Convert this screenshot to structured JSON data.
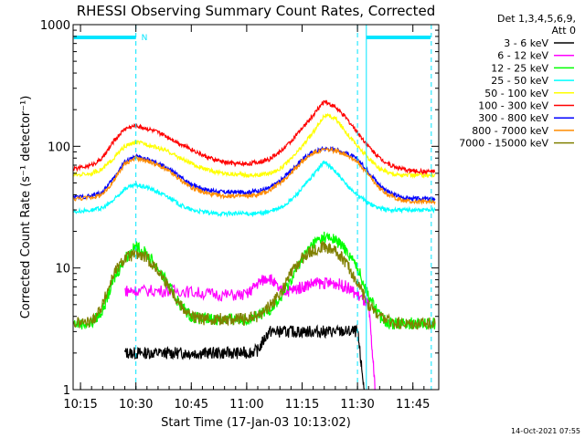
{
  "chart_data": {
    "type": "line",
    "title": "RHESSI Observing Summary Count Rates, Corrected",
    "xlabel": "Start Time (17-Jan-03 10:13:02)",
    "ylabel": "Corrected Count Rate (s⁻¹ detector⁻¹)",
    "y_scale": "log",
    "ylim": [
      1,
      1000
    ],
    "xlim_minutes": [
      10.2167,
      11.8667
    ],
    "x_tick_labels": [
      "10:15",
      "10:30",
      "10:45",
      "11:00",
      "11:15",
      "11:30",
      "11:45"
    ],
    "x_tick_values": [
      10.25,
      10.5,
      10.75,
      11.0,
      11.25,
      11.5,
      11.75
    ],
    "y_tick_labels": [
      "1",
      "10",
      "100",
      "1000"
    ],
    "y_tick_values": [
      1,
      10,
      100,
      1000
    ],
    "legend": {
      "header_line1": "Det 1,3,4,5,6,9,",
      "header_line2": "Att 0",
      "position": "top-right"
    },
    "series": [
      {
        "name": "3 - 6 keV",
        "color": "#000000",
        "x": [
          10.45,
          10.5,
          10.55,
          10.6,
          10.65,
          10.7,
          10.75,
          10.8,
          10.85,
          10.9,
          10.95,
          11.0,
          11.05,
          11.1,
          11.15,
          11.2,
          11.25,
          11.3,
          11.35,
          11.4,
          11.45,
          11.5,
          11.53
        ],
        "y": [
          2.0,
          2.0,
          2.0,
          2.0,
          2.0,
          2.0,
          2.0,
          2.0,
          2.0,
          2.0,
          2.0,
          2.0,
          2.1,
          3.0,
          3.0,
          3.0,
          3.0,
          3.0,
          3.0,
          3.0,
          3.0,
          3.0,
          1.0
        ]
      },
      {
        "name": "6 - 12 keV",
        "color": "#ff00ff",
        "x": [
          10.45,
          10.5,
          10.6,
          10.7,
          10.8,
          10.9,
          11.0,
          11.05,
          11.1,
          11.15,
          11.2,
          11.25,
          11.3,
          11.35,
          11.4,
          11.45,
          11.5,
          11.55,
          11.58
        ],
        "y": [
          6.5,
          6.5,
          6.5,
          6.5,
          6.2,
          6.0,
          6.0,
          7.5,
          8.5,
          6.5,
          6.5,
          7.0,
          7.5,
          7.5,
          7.5,
          7.0,
          6.0,
          5.0,
          1.0
        ]
      },
      {
        "name": "12 - 25 keV",
        "color": "#00ff00",
        "x": [
          10.22,
          10.3,
          10.35,
          10.4,
          10.45,
          10.5,
          10.55,
          10.6,
          10.65,
          10.7,
          10.75,
          10.8,
          10.85,
          10.9,
          10.95,
          11.0,
          11.05,
          11.1,
          11.15,
          11.2,
          11.25,
          11.3,
          11.35,
          11.4,
          11.45,
          11.5,
          11.55,
          11.6,
          11.65,
          11.7,
          11.75,
          11.8,
          11.85
        ],
        "y": [
          3.5,
          3.5,
          4.5,
          8.0,
          12.0,
          15.0,
          13.0,
          10.0,
          7.0,
          5.0,
          4.0,
          3.8,
          3.8,
          3.8,
          3.8,
          3.8,
          4.0,
          4.5,
          5.5,
          8.0,
          12.0,
          16.0,
          18.0,
          17.0,
          14.0,
          10.0,
          6.0,
          4.0,
          3.5,
          3.5,
          3.5,
          3.5,
          3.5
        ]
      },
      {
        "name": "25 - 50 keV",
        "color": "#00ffff",
        "x": [
          10.22,
          10.3,
          10.35,
          10.4,
          10.45,
          10.5,
          10.55,
          10.6,
          10.65,
          10.7,
          10.75,
          10.8,
          10.85,
          10.9,
          10.95,
          11.0,
          11.05,
          11.1,
          11.15,
          11.2,
          11.25,
          11.3,
          11.35,
          11.4,
          11.45,
          11.5,
          11.55,
          11.6,
          11.65,
          11.7,
          11.75,
          11.8,
          11.85
        ],
        "y": [
          29,
          30,
          31,
          36,
          45,
          48,
          46,
          42,
          38,
          33,
          30,
          29,
          28,
          28,
          28,
          28,
          28,
          29,
          31,
          36,
          45,
          58,
          75,
          62,
          48,
          40,
          34,
          31,
          30,
          30,
          30,
          30,
          30
        ]
      },
      {
        "name": "50 - 100 keV",
        "color": "#ffff00",
        "x": [
          10.22,
          10.3,
          10.35,
          10.4,
          10.45,
          10.5,
          10.55,
          10.6,
          10.65,
          10.7,
          10.75,
          10.8,
          10.85,
          10.9,
          10.95,
          11.0,
          11.05,
          11.1,
          11.15,
          11.2,
          11.25,
          11.3,
          11.35,
          11.4,
          11.45,
          11.5,
          11.55,
          11.6,
          11.65,
          11.7,
          11.75,
          11.8,
          11.85
        ],
        "y": [
          58,
          60,
          65,
          80,
          100,
          108,
          104,
          97,
          90,
          80,
          72,
          66,
          62,
          60,
          59,
          58,
          58,
          60,
          65,
          78,
          100,
          130,
          180,
          170,
          130,
          100,
          80,
          65,
          60,
          58,
          58,
          58,
          58
        ]
      },
      {
        "name": "100 - 300 keV",
        "color": "#ff0000",
        "x": [
          10.22,
          10.3,
          10.35,
          10.4,
          10.45,
          10.5,
          10.55,
          10.6,
          10.65,
          10.7,
          10.75,
          10.8,
          10.85,
          10.9,
          10.95,
          11.0,
          11.05,
          11.1,
          11.15,
          11.2,
          11.25,
          11.3,
          11.35,
          11.4,
          11.45,
          11.5,
          11.55,
          11.6,
          11.65,
          11.7,
          11.75,
          11.8,
          11.85
        ],
        "y": [
          65,
          70,
          80,
          110,
          140,
          148,
          140,
          130,
          118,
          105,
          95,
          85,
          78,
          74,
          72,
          72,
          74,
          78,
          90,
          110,
          140,
          180,
          235,
          210,
          170,
          130,
          100,
          80,
          70,
          65,
          63,
          62,
          62
        ]
      },
      {
        "name": "300 - 800 keV",
        "color": "#0000ff",
        "x": [
          10.22,
          10.3,
          10.35,
          10.4,
          10.45,
          10.5,
          10.55,
          10.6,
          10.65,
          10.7,
          10.75,
          10.8,
          10.85,
          10.9,
          10.95,
          11.0,
          11.05,
          11.1,
          11.15,
          11.2,
          11.25,
          11.3,
          11.35,
          11.4,
          11.45,
          11.5,
          11.55,
          11.6,
          11.65,
          11.7,
          11.75,
          11.8,
          11.85
        ],
        "y": [
          38,
          39,
          42,
          55,
          75,
          82,
          78,
          72,
          65,
          56,
          49,
          45,
          43,
          42,
          42,
          42,
          43,
          45,
          52,
          63,
          78,
          90,
          96,
          94,
          88,
          78,
          62,
          48,
          41,
          38,
          37,
          37,
          37
        ]
      },
      {
        "name": "800 - 7000 keV",
        "color": "#ff8c00",
        "x": [
          10.22,
          10.3,
          10.35,
          10.4,
          10.45,
          10.5,
          10.55,
          10.6,
          10.65,
          10.7,
          10.75,
          10.8,
          10.85,
          10.9,
          10.95,
          11.0,
          11.05,
          11.1,
          11.15,
          11.2,
          11.25,
          11.3,
          11.35,
          11.4,
          11.45,
          11.5,
          11.55,
          11.6,
          11.65,
          11.7,
          11.75,
          11.8,
          11.85
        ],
        "y": [
          37,
          38,
          40,
          52,
          72,
          80,
          76,
          70,
          62,
          53,
          46,
          42,
          40,
          39,
          39,
          39,
          40,
          43,
          50,
          60,
          75,
          88,
          94,
          92,
          86,
          75,
          58,
          45,
          39,
          36,
          35,
          35,
          35
        ]
      },
      {
        "name": "7000 - 15000 keV",
        "color": "#808000",
        "x": [
          10.22,
          10.3,
          10.35,
          10.4,
          10.45,
          10.5,
          10.55,
          10.6,
          10.65,
          10.7,
          10.75,
          10.8,
          10.85,
          10.9,
          10.95,
          11.0,
          11.05,
          11.1,
          11.15,
          11.2,
          11.25,
          11.3,
          11.35,
          11.4,
          11.45,
          11.5,
          11.55,
          11.6,
          11.65,
          11.7,
          11.75,
          11.8,
          11.85
        ],
        "y": [
          3.5,
          3.6,
          5.0,
          9.0,
          12.0,
          13.0,
          12.0,
          9.5,
          7.0,
          5.0,
          4.0,
          3.8,
          3.8,
          3.8,
          3.8,
          3.8,
          4.0,
          4.8,
          6.0,
          9.0,
          12.0,
          14.0,
          15.0,
          14.0,
          11.0,
          7.5,
          5.0,
          4.0,
          3.6,
          3.5,
          3.5,
          3.5,
          3.5
        ]
      }
    ],
    "annotations": {
      "vertical_lines_minutes": [
        10.5,
        11.5,
        11.833
      ],
      "night_bars": [
        [
          10.22,
          10.5
        ],
        [
          11.54,
          11.83
        ]
      ],
      "night_label": "N",
      "footer_date": "14-Oct-2021 07:55"
    }
  }
}
